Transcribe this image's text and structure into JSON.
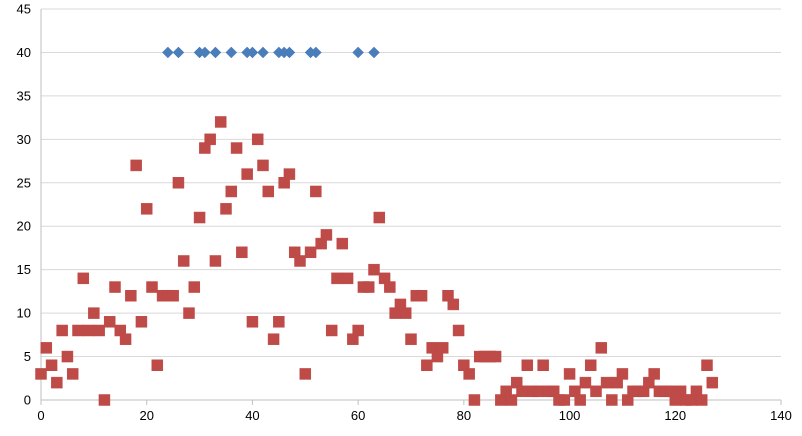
{
  "chart_data": {
    "type": "scatter",
    "title": "",
    "xlabel": "",
    "ylabel": "",
    "xlim": [
      0,
      140
    ],
    "ylim": [
      0,
      45
    ],
    "x_ticks": [
      0,
      20,
      40,
      60,
      80,
      100,
      120,
      140
    ],
    "y_ticks": [
      0,
      5,
      10,
      15,
      20,
      25,
      30,
      35,
      40,
      45
    ],
    "grid": "horizontal",
    "legend": "none",
    "series": [
      {
        "marker": "diamond",
        "color": "#4a7ebb",
        "points": [
          [
            24,
            40
          ],
          [
            26,
            40
          ],
          [
            30,
            40
          ],
          [
            31,
            40
          ],
          [
            33,
            40
          ],
          [
            36,
            40
          ],
          [
            39,
            40
          ],
          [
            40,
            40
          ],
          [
            42,
            40
          ],
          [
            45,
            40
          ],
          [
            46,
            40
          ],
          [
            47,
            40
          ],
          [
            51,
            40
          ],
          [
            52,
            40
          ],
          [
            60,
            40
          ],
          [
            63,
            40
          ]
        ]
      },
      {
        "marker": "square",
        "color": "#be4b48",
        "points": [
          [
            0,
            3
          ],
          [
            1,
            6
          ],
          [
            2,
            4
          ],
          [
            3,
            2
          ],
          [
            4,
            8
          ],
          [
            5,
            5
          ],
          [
            6,
            3
          ],
          [
            7,
            8
          ],
          [
            8,
            14
          ],
          [
            9,
            8
          ],
          [
            10,
            10
          ],
          [
            11,
            8
          ],
          [
            12,
            0
          ],
          [
            13,
            9
          ],
          [
            14,
            13
          ],
          [
            15,
            8
          ],
          [
            16,
            7
          ],
          [
            17,
            12
          ],
          [
            18,
            27
          ],
          [
            19,
            9
          ],
          [
            20,
            22
          ],
          [
            21,
            13
          ],
          [
            22,
            4
          ],
          [
            23,
            12
          ],
          [
            24,
            12
          ],
          [
            25,
            12
          ],
          [
            26,
            25
          ],
          [
            27,
            16
          ],
          [
            28,
            10
          ],
          [
            29,
            13
          ],
          [
            30,
            21
          ],
          [
            31,
            29
          ],
          [
            32,
            30
          ],
          [
            33,
            16
          ],
          [
            34,
            32
          ],
          [
            35,
            22
          ],
          [
            36,
            24
          ],
          [
            37,
            29
          ],
          [
            38,
            17
          ],
          [
            39,
            26
          ],
          [
            40,
            9
          ],
          [
            41,
            30
          ],
          [
            42,
            27
          ],
          [
            43,
            24
          ],
          [
            44,
            7
          ],
          [
            45,
            9
          ],
          [
            46,
            25
          ],
          [
            47,
            26
          ],
          [
            48,
            17
          ],
          [
            49,
            16
          ],
          [
            50,
            3
          ],
          [
            51,
            17
          ],
          [
            52,
            24
          ],
          [
            53,
            18
          ],
          [
            54,
            19
          ],
          [
            55,
            8
          ],
          [
            56,
            14
          ],
          [
            57,
            18
          ],
          [
            58,
            14
          ],
          [
            59,
            7
          ],
          [
            60,
            8
          ],
          [
            61,
            13
          ],
          [
            62,
            13
          ],
          [
            63,
            15
          ],
          [
            64,
            21
          ],
          [
            65,
            14
          ],
          [
            66,
            13
          ],
          [
            67,
            10
          ],
          [
            68,
            11
          ],
          [
            69,
            10
          ],
          [
            70,
            7
          ],
          [
            71,
            12
          ],
          [
            72,
            12
          ],
          [
            73,
            4
          ],
          [
            74,
            6
          ],
          [
            75,
            5
          ],
          [
            76,
            6
          ],
          [
            77,
            12
          ],
          [
            78,
            11
          ],
          [
            79,
            8
          ],
          [
            80,
            4
          ],
          [
            81,
            3
          ],
          [
            82,
            0
          ],
          [
            83,
            5
          ],
          [
            84,
            5
          ],
          [
            85,
            5
          ],
          [
            86,
            5
          ],
          [
            87,
            0
          ],
          [
            88,
            1
          ],
          [
            89,
            0
          ],
          [
            90,
            2
          ],
          [
            91,
            1
          ],
          [
            92,
            4
          ],
          [
            93,
            1
          ],
          [
            94,
            1
          ],
          [
            95,
            4
          ],
          [
            96,
            1
          ],
          [
            97,
            1
          ],
          [
            98,
            0
          ],
          [
            99,
            0
          ],
          [
            100,
            3
          ],
          [
            101,
            1
          ],
          [
            102,
            0
          ],
          [
            103,
            2
          ],
          [
            104,
            4
          ],
          [
            105,
            1
          ],
          [
            106,
            6
          ],
          [
            107,
            2
          ],
          [
            108,
            0
          ],
          [
            109,
            2
          ],
          [
            110,
            3
          ],
          [
            111,
            0
          ],
          [
            112,
            1
          ],
          [
            113,
            1
          ],
          [
            114,
            1
          ],
          [
            115,
            2
          ],
          [
            116,
            3
          ],
          [
            117,
            1
          ],
          [
            118,
            1
          ],
          [
            119,
            1
          ],
          [
            120,
            0
          ],
          [
            121,
            1
          ],
          [
            122,
            0
          ],
          [
            123,
            0
          ],
          [
            124,
            1
          ],
          [
            125,
            0
          ],
          [
            126,
            4
          ],
          [
            127,
            2
          ]
        ]
      }
    ]
  }
}
